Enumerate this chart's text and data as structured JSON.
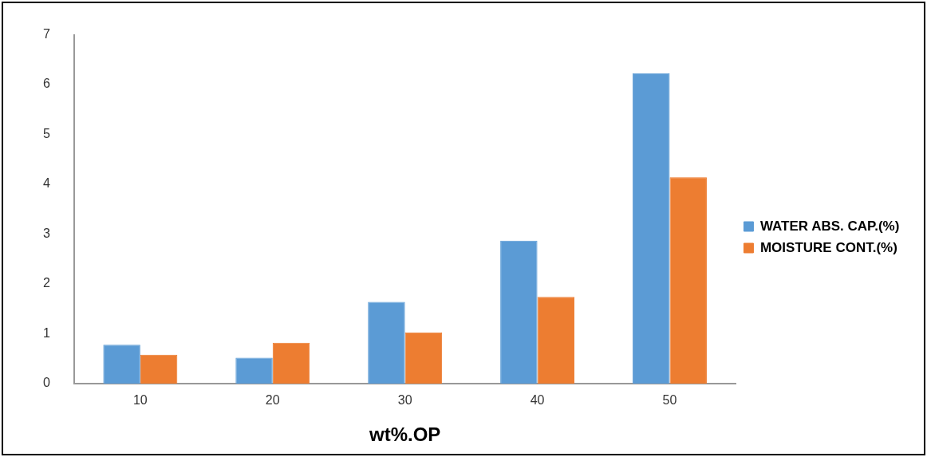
{
  "chart_data": {
    "type": "bar",
    "xlabel": "wt%.OP",
    "categories": [
      "10",
      "20",
      "30",
      "40",
      "50"
    ],
    "series": [
      {
        "name": "WATER ABS. CAP.(%)",
        "color": "#5b9bd5",
        "values": [
          0.78,
          0.52,
          1.64,
          2.87,
          6.23
        ]
      },
      {
        "name": "MOISTURE CONT.(%)",
        "color": "#ed7d31",
        "values": [
          0.58,
          0.82,
          1.03,
          1.74,
          4.14
        ]
      }
    ],
    "ylim": [
      0,
      7
    ],
    "yticks": [
      0,
      1,
      2,
      3,
      4,
      5,
      6,
      7
    ],
    "grid": false,
    "legend": "right"
  }
}
